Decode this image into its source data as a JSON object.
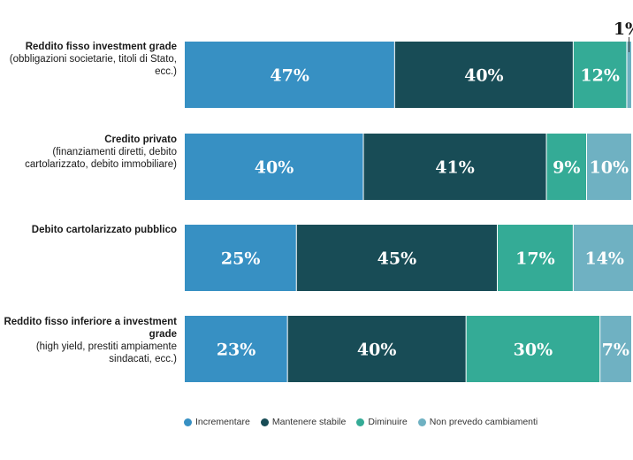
{
  "chart_data": {
    "type": "bar",
    "orientation": "horizontal",
    "stacked": true,
    "xlim": [
      0,
      100
    ],
    "categories": [
      {
        "title": "Reddito fisso investment grade",
        "subtitle": "(obbligazioni societarie, titoli di Stato, ecc.)"
      },
      {
        "title": "Credito privato",
        "subtitle": "(finanziamenti diretti, debito cartolarizzato, debito immobiliare)"
      },
      {
        "title": "Debito cartolarizzato pubblico",
        "subtitle": ""
      },
      {
        "title": "Reddito fisso inferiore a investment grade",
        "subtitle": "(high yield, prestiti ampiamente sindacati, ecc.)"
      }
    ],
    "series": [
      {
        "name": "Incrementare",
        "color": "#3790c3",
        "values": [
          47,
          40,
          25,
          23
        ],
        "labels": [
          "47%",
          "40%",
          "25%",
          "23%"
        ]
      },
      {
        "name": "Mantenere stabile",
        "color": "#184c56",
        "values": [
          40,
          41,
          45,
          40
        ],
        "labels": [
          "40%",
          "41%",
          "45%",
          "40%"
        ]
      },
      {
        "name": "Diminuire",
        "color": "#34ab96",
        "values": [
          12,
          9,
          17,
          30
        ],
        "labels": [
          "12%",
          "9%",
          "17%",
          "30%"
        ]
      },
      {
        "name": "Non prevedo cambiamenti",
        "color": "#6fb1c2",
        "values": [
          1,
          10,
          14,
          7
        ],
        "labels": [
          "1%",
          "10%",
          "14%",
          "7%"
        ]
      }
    ],
    "legend_position": "bottom",
    "grid": false
  }
}
